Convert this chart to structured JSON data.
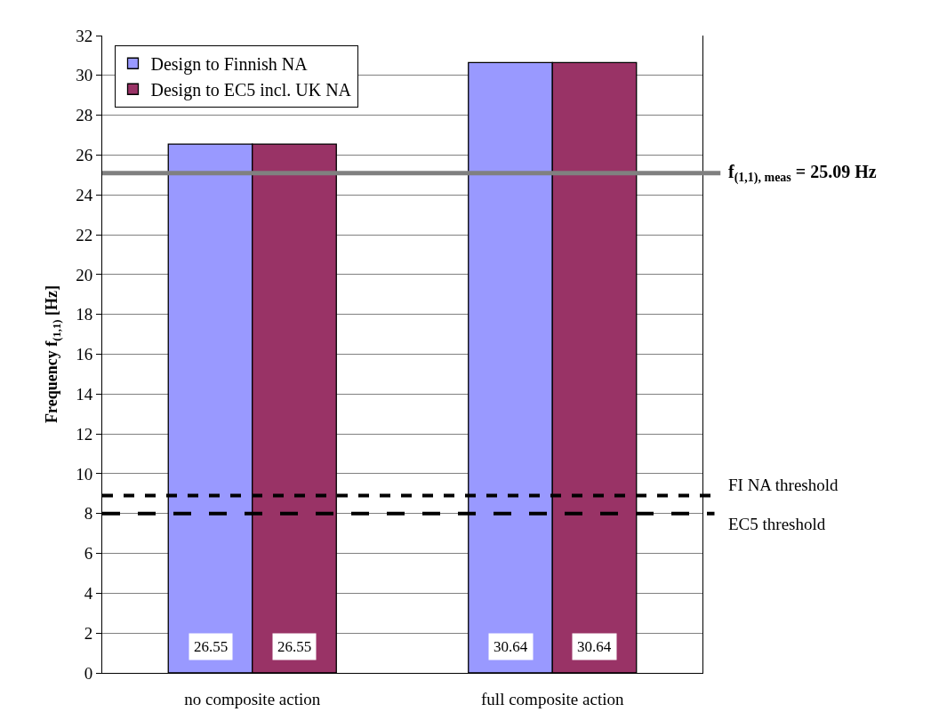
{
  "chart_data": {
    "type": "bar",
    "ylabel": "Frequency f$_{(1,1)}$ [Hz]",
    "categories": [
      "no composite action",
      "full composite action"
    ],
    "series": [
      {
        "name": "Design to Finnish NA",
        "color": "#9999ff",
        "values": [
          26.55,
          30.64
        ]
      },
      {
        "name": "Design to EC5 incl. UK NA",
        "color": "#993366",
        "values": [
          26.55,
          30.64
        ]
      }
    ],
    "ylim": [
      0,
      32
    ],
    "yticks": [
      0,
      2,
      4,
      6,
      8,
      10,
      12,
      14,
      16,
      18,
      20,
      22,
      24,
      26,
      28,
      30,
      32
    ],
    "grid": "y",
    "legend": "top left",
    "data_labels": true,
    "ref_lines": [
      {
        "axis": "y",
        "value": 25.09,
        "label": "f$_{(1,1), meas}$ = 25.09 Hz",
        "color": "#808080",
        "line_style": "solid"
      },
      {
        "axis": "y",
        "value": 8.9,
        "label": "FI NA threshold",
        "color": "#000000",
        "line_style": "dashed"
      },
      {
        "axis": "y",
        "value": 8,
        "label": "EC5 threshold",
        "color": "#000000",
        "line_style": "longdash"
      }
    ]
  }
}
